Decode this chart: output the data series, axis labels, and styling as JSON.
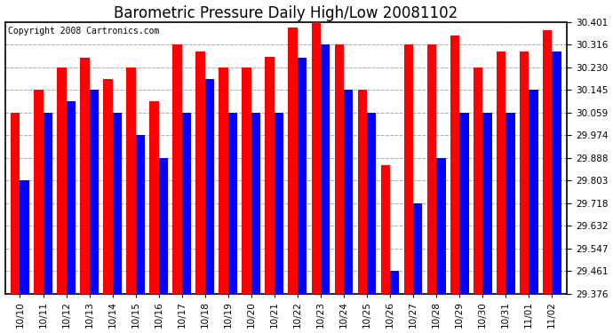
{
  "title": "Barometric Pressure Daily High/Low 20081102",
  "copyright": "Copyright 2008 Cartronics.com",
  "dates": [
    "10/10",
    "10/11",
    "10/12",
    "10/13",
    "10/14",
    "10/15",
    "10/16",
    "10/17",
    "10/18",
    "10/19",
    "10/20",
    "10/21",
    "10/22",
    "10/23",
    "10/24",
    "10/25",
    "10/26",
    "10/27",
    "10/28",
    "10/29",
    "10/30",
    "10/31",
    "11/01",
    "11/02"
  ],
  "highs": [
    30.059,
    30.145,
    30.23,
    30.266,
    30.188,
    30.23,
    30.102,
    30.316,
    30.29,
    30.23,
    30.23,
    30.27,
    30.38,
    30.401,
    30.316,
    30.145,
    29.86,
    30.316,
    30.316,
    30.35,
    30.23,
    30.29,
    30.29,
    30.371
  ],
  "lows": [
    29.803,
    30.059,
    30.102,
    30.145,
    30.059,
    29.974,
    29.888,
    30.059,
    30.188,
    30.059,
    30.059,
    30.059,
    30.266,
    30.316,
    30.145,
    30.059,
    29.461,
    29.718,
    29.888,
    30.059,
    30.059,
    30.059,
    30.145,
    30.29
  ],
  "high_color": "#FF0000",
  "low_color": "#0000FF",
  "bg_color": "#FFFFFF",
  "plot_bg_color": "#FFFFFF",
  "grid_color": "#AAAAAA",
  "title_fontsize": 12,
  "copyright_fontsize": 7,
  "tick_fontsize": 7.5,
  "ylim_min": 29.376,
  "ylim_max": 30.401,
  "yticks": [
    29.376,
    29.461,
    29.547,
    29.632,
    29.718,
    29.803,
    29.888,
    29.974,
    30.059,
    30.145,
    30.23,
    30.316,
    30.401
  ]
}
